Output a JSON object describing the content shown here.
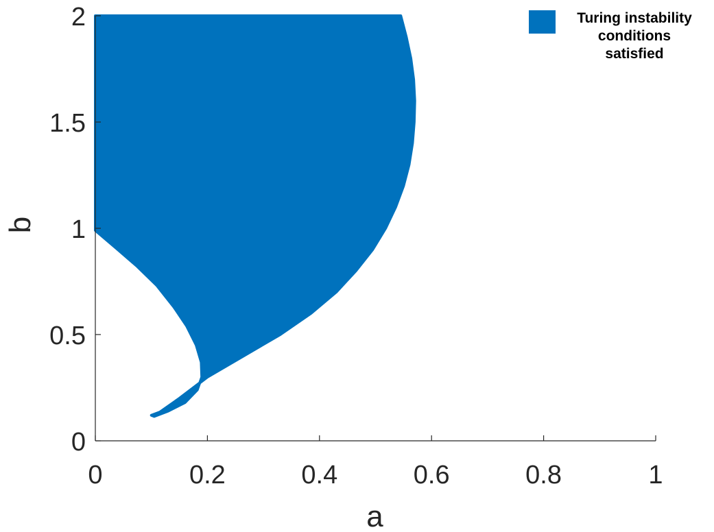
{
  "chart_data": {
    "type": "area",
    "title": "",
    "xlabel": "a",
    "ylabel": "b",
    "xlim": [
      0,
      1
    ],
    "ylim": [
      0,
      2
    ],
    "x_ticks": [
      "0",
      "0.2",
      "0.4",
      "0.6",
      "0.8",
      "1"
    ],
    "y_ticks": [
      "0",
      "0.5",
      "1",
      "1.5",
      "2"
    ],
    "grid": false,
    "legend_position": "top-right",
    "series": [
      {
        "name": "Turing instability conditions satisfied",
        "color": "#0072BD",
        "boundary": [
          [
            0.0,
            2.0
          ],
          [
            0.545,
            2.0
          ],
          [
            0.555,
            1.9
          ],
          [
            0.563,
            1.8
          ],
          [
            0.568,
            1.7
          ],
          [
            0.57,
            1.6
          ],
          [
            0.569,
            1.5
          ],
          [
            0.566,
            1.4
          ],
          [
            0.56,
            1.3
          ],
          [
            0.55,
            1.2
          ],
          [
            0.536,
            1.1
          ],
          [
            0.518,
            1.0
          ],
          [
            0.495,
            0.9
          ],
          [
            0.465,
            0.8
          ],
          [
            0.43,
            0.7
          ],
          [
            0.385,
            0.6
          ],
          [
            0.33,
            0.5
          ],
          [
            0.265,
            0.4
          ],
          [
            0.2,
            0.3
          ],
          [
            0.15,
            0.2
          ],
          [
            0.115,
            0.135
          ],
          [
            0.1,
            0.12
          ],
          [
            0.105,
            0.115
          ],
          [
            0.13,
            0.14
          ],
          [
            0.16,
            0.18
          ],
          [
            0.182,
            0.24
          ],
          [
            0.19,
            0.3
          ],
          [
            0.189,
            0.37
          ],
          [
            0.18,
            0.45
          ],
          [
            0.163,
            0.54
          ],
          [
            0.14,
            0.63
          ],
          [
            0.11,
            0.73
          ],
          [
            0.075,
            0.82
          ],
          [
            0.04,
            0.9
          ],
          [
            0.0,
            0.99
          ],
          [
            0.0,
            2.0
          ]
        ]
      }
    ]
  }
}
